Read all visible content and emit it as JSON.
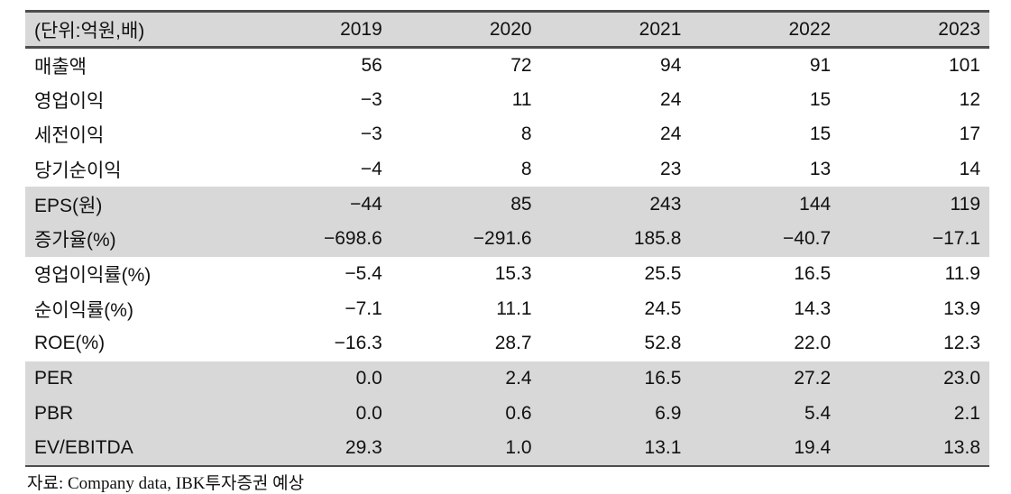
{
  "table": {
    "unit_label": "(단위:억원,배)",
    "years": [
      "2019",
      "2020",
      "2021",
      "2022",
      "2023"
    ],
    "rows": [
      {
        "label": "매출액",
        "values": [
          "56",
          "72",
          "94",
          "91",
          "101"
        ],
        "shaded": false
      },
      {
        "label": "영업이익",
        "values": [
          "−3",
          "11",
          "24",
          "15",
          "12"
        ],
        "shaded": false
      },
      {
        "label": "세전이익",
        "values": [
          "−3",
          "8",
          "24",
          "15",
          "17"
        ],
        "shaded": false
      },
      {
        "label": "당기순이익",
        "values": [
          "−4",
          "8",
          "23",
          "13",
          "14"
        ],
        "shaded": false
      },
      {
        "label": "EPS(원)",
        "values": [
          "−44",
          "85",
          "243",
          "144",
          "119"
        ],
        "shaded": true
      },
      {
        "label": "증가율(%)",
        "values": [
          "−698.6",
          "−291.6",
          "185.8",
          "−40.7",
          "−17.1"
        ],
        "shaded": true
      },
      {
        "label": "영업이익률(%)",
        "values": [
          "−5.4",
          "15.3",
          "25.5",
          "16.5",
          "11.9"
        ],
        "shaded": false
      },
      {
        "label": "순이익률(%)",
        "values": [
          "−7.1",
          "11.1",
          "24.5",
          "14.3",
          "13.9"
        ],
        "shaded": false
      },
      {
        "label": "ROE(%)",
        "values": [
          "−16.3",
          "28.7",
          "52.8",
          "22.0",
          "12.3"
        ],
        "shaded": false
      },
      {
        "label": "PER",
        "values": [
          "0.0",
          "2.4",
          "16.5",
          "27.2",
          "23.0"
        ],
        "shaded": true
      },
      {
        "label": "PBR",
        "values": [
          "0.0",
          "0.6",
          "6.9",
          "5.4",
          "2.1"
        ],
        "shaded": true
      },
      {
        "label": "EV/EBITDA",
        "values": [
          "29.3",
          "1.0",
          "13.1",
          "19.4",
          "13.8"
        ],
        "shaded": true
      }
    ],
    "source": "자료: Company data, IBK투자증권 예상"
  },
  "colors": {
    "band": "#d8d8d8",
    "border": "#4d4d4f"
  }
}
